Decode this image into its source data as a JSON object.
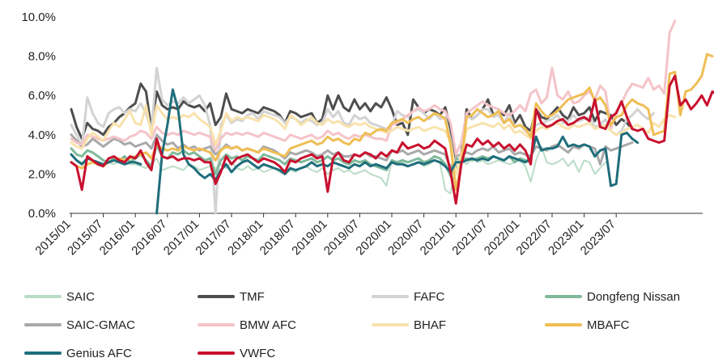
{
  "chart_data": {
    "type": "line",
    "title": "",
    "xlabel": "",
    "ylabel": "",
    "ylim": [
      0,
      10
    ],
    "y_ticks": [
      "0.0%",
      "2.0%",
      "4.0%",
      "6.0%",
      "8.0%",
      "10.0%"
    ],
    "x_ticks": [
      "2015/01",
      "2015/07",
      "2016/01",
      "2016/07",
      "2017/01",
      "2017/07",
      "2018/01",
      "2018/07",
      "2019/01",
      "2019/07",
      "2020/01",
      "2020/07",
      "2021/01",
      "2021/07",
      "2022/01",
      "2022/07",
      "2023/01",
      "2023/07"
    ],
    "x_start": "2015/01",
    "grid": false,
    "legend_placement": "bottom",
    "series": [
      {
        "name": "SAIC",
        "color": "#b9dcc6",
        "width": 2,
        "values": [
          3.0,
          2.7,
          2.6,
          2.5,
          2.6,
          2.5,
          2.4,
          2.6,
          2.5,
          2.7,
          2.6,
          2.5,
          2.5,
          2.4,
          2.3,
          2.5,
          2.8,
          2.2,
          2.3,
          2.4,
          2.3,
          2.2,
          2.5,
          2.4,
          2.2,
          2.3,
          2.4,
          2.3,
          2.5,
          2.3,
          2.6,
          2.3,
          2.2,
          2.4,
          2.2,
          2.3,
          2.1,
          2.2,
          2.3,
          2.1,
          2.0,
          2.2,
          2.1,
          2.3,
          2.4,
          2.2,
          2.1,
          2.3,
          2.0,
          2.2,
          2.3,
          2.1,
          2.2,
          2.0,
          2.1,
          2.2,
          2.0,
          1.9,
          1.8,
          1.4,
          2.7,
          2.5,
          2.6,
          2.4,
          2.5,
          2.6,
          2.4,
          2.5,
          2.7,
          2.6,
          1.2,
          1.0,
          2.6,
          2.7,
          2.5,
          2.8,
          2.6,
          2.7,
          2.5,
          2.6,
          2.7,
          2.6,
          2.5,
          2.6,
          2.7,
          2.4,
          1.6,
          2.7,
          3.4,
          2.6,
          2.5,
          2.6,
          2.8,
          2.4,
          2.7,
          2.1,
          2.7,
          2.6,
          2.0,
          2.3,
          2.6
        ]
      },
      {
        "name": "TMF",
        "color": "#4e4e4e",
        "width": 3,
        "values": [
          5.3,
          4.4,
          3.8,
          4.6,
          4.3,
          4.2,
          4.0,
          4.4,
          4.6,
          4.9,
          5.1,
          5.4,
          5.6,
          6.6,
          6.2,
          4.3,
          6.2,
          5.5,
          5.3,
          5.4,
          5.3,
          5.7,
          5.5,
          5.4,
          5.5,
          5.2,
          5.6,
          4.5,
          4.9,
          6.1,
          5.3,
          5.2,
          5.1,
          5.3,
          5.2,
          5.1,
          5.4,
          5.3,
          5.2,
          5.0,
          4.6,
          5.2,
          5.1,
          4.9,
          5.0,
          5.1,
          4.6,
          4.8,
          6.0,
          5.3,
          6.0,
          5.4,
          5.2,
          5.8,
          5.3,
          5.6,
          5.2,
          5.6,
          5.4,
          5.9,
          5.3,
          4.5,
          4.6,
          4.0,
          5.8,
          5.4,
          5.1,
          5.3,
          5.2,
          5.0,
          5.4,
          4.3,
          2.0,
          3.0,
          5.3,
          4.8,
          5.0,
          5.3,
          5.8,
          5.0,
          5.2,
          5.0,
          5.5,
          4.6,
          5.0,
          4.4,
          4.2,
          5.3,
          4.9,
          4.8,
          5.1,
          5.4,
          5.0,
          4.8,
          5.4,
          5.0,
          5.1,
          5.4,
          4.7,
          5.2,
          5.1,
          5.0,
          4.5,
          4.8,
          4.6,
          4.3
        ]
      },
      {
        "name": "FAFC",
        "color": "#d3d3d3",
        "width": 3,
        "values": [
          4.5,
          4.0,
          3.4,
          5.9,
          5.1,
          4.6,
          4.4,
          5.1,
          5.3,
          5.4,
          5.1,
          5.3,
          5.2,
          5.6,
          5.1,
          4.2,
          7.4,
          5.8,
          5.5,
          5.7,
          5.6,
          5.9,
          5.6,
          5.8,
          6.0,
          5.5,
          4.5,
          0.0,
          4.5,
          5.0,
          4.6,
          4.8,
          4.7,
          5.0,
          5.1,
          4.8,
          5.2,
          5.1,
          5.0,
          4.9,
          4.6,
          4.9,
          4.8,
          4.6,
          4.8,
          4.7,
          4.5,
          4.6,
          5.3,
          4.9,
          5.2,
          4.6,
          4.5,
          5.0,
          4.8,
          4.9,
          4.6,
          4.5,
          4.4,
          4.3,
          4.5,
          5.2,
          5.0,
          4.9,
          5.2,
          5.3,
          5.1,
          4.8,
          5.1,
          4.8,
          4.9,
          3.7,
          2.0,
          2.8,
          5.0,
          4.8,
          5.0,
          5.3,
          5.3,
          4.9,
          5.0,
          4.6,
          5.1,
          4.4,
          4.5,
          4.2,
          4.0,
          4.5,
          4.6,
          4.7,
          4.8,
          5.0,
          4.6,
          4.7,
          5.0,
          4.7,
          4.8,
          4.9,
          4.4,
          4.5,
          4.8,
          4.2,
          4.0,
          4.2,
          4.8,
          5.0,
          5.3,
          5.0,
          4.8,
          5.1
        ]
      },
      {
        "name": "Dongfeng Nissan",
        "color": "#7fb99a",
        "width": 3,
        "values": [
          3.3,
          3.0,
          2.9,
          3.2,
          3.1,
          2.9,
          2.7,
          2.6,
          2.8,
          2.7,
          2.9,
          2.6,
          2.8,
          3.0,
          2.7,
          2.4,
          3.5,
          2.9,
          2.8,
          3.1,
          3.0,
          3.2,
          3.0,
          3.1,
          2.9,
          2.7,
          2.8,
          2.0,
          2.7,
          3.0,
          2.8,
          2.9,
          2.7,
          2.9,
          2.8,
          2.7,
          3.0,
          2.9,
          2.8,
          2.7,
          2.5,
          2.8,
          2.7,
          2.6,
          2.7,
          2.8,
          2.6,
          2.7,
          2.9,
          2.7,
          2.8,
          2.6,
          2.5,
          2.7,
          2.6,
          2.7,
          2.5,
          2.4,
          2.3,
          2.2,
          2.7,
          2.6,
          2.7,
          2.6,
          2.7,
          2.8,
          2.6,
          2.7,
          2.9,
          2.8,
          2.5,
          1.9,
          2.8,
          2.7,
          2.8,
          2.7,
          2.8,
          2.9,
          2.8,
          2.9,
          2.8,
          2.7,
          2.9,
          2.6,
          2.8,
          2.7,
          2.6
        ]
      },
      {
        "name": "SAIC-GMAC",
        "color": "#a9a9a9",
        "width": 3,
        "values": [
          4.0,
          3.7,
          3.4,
          3.5,
          3.8,
          3.6,
          3.4,
          3.6,
          3.8,
          3.7,
          3.5,
          3.6,
          3.4,
          3.5,
          3.6,
          3.3,
          4.0,
          3.7,
          3.5,
          3.6,
          3.3,
          3.5,
          3.3,
          3.4,
          3.2,
          3.3,
          3.4,
          3.0,
          3.2,
          3.5,
          3.3,
          3.4,
          3.2,
          3.3,
          3.2,
          3.1,
          3.4,
          3.3,
          3.2,
          3.0,
          2.8,
          3.1,
          3.0,
          3.1,
          3.2,
          3.1,
          2.9,
          3.0,
          3.2,
          3.0,
          3.1,
          2.9,
          2.9,
          3.0,
          2.9,
          3.1,
          2.9,
          2.9,
          2.8,
          2.7,
          3.2,
          3.1,
          3.2,
          3.0,
          3.1,
          3.2,
          3.0,
          3.1,
          3.2,
          3.1,
          3.0,
          2.3,
          2.9,
          3.0,
          3.1,
          3.0,
          3.2,
          3.3,
          3.2,
          3.4,
          3.1,
          3.2,
          3.3,
          3.0,
          3.1,
          3.0,
          2.9,
          3.4,
          3.3,
          3.2,
          3.4,
          3.5,
          3.3,
          3.1,
          3.4,
          3.3,
          3.5,
          3.4,
          3.3,
          2.5,
          3.4,
          3.2,
          3.3,
          3.4,
          3.5,
          3.6
        ]
      },
      {
        "name": "BMW AFC",
        "color": "#f4c4c8",
        "width": 3,
        "values": [
          3.8,
          3.6,
          3.5,
          4.0,
          3.9,
          3.8,
          3.7,
          3.8,
          3.9,
          3.8,
          3.7,
          3.9,
          4.0,
          4.2,
          4.1,
          3.8,
          4.4,
          4.1,
          4.0,
          4.1,
          4.0,
          4.2,
          4.1,
          4.0,
          4.1,
          4.0,
          3.9,
          3.2,
          3.8,
          4.1,
          4.0,
          4.1,
          4.0,
          4.1,
          4.0,
          3.9,
          4.1,
          4.0,
          3.9,
          3.8,
          3.7,
          4.0,
          3.9,
          3.8,
          3.9,
          4.0,
          3.8,
          3.9,
          4.2,
          4.0,
          4.1,
          3.9,
          3.8,
          4.0,
          3.9,
          4.0,
          3.9,
          3.8,
          3.8,
          3.7,
          4.5,
          4.6,
          4.8,
          5.0,
          5.2,
          5.4,
          5.2,
          5.3,
          5.5,
          5.3,
          5.2,
          4.6,
          3.0,
          3.6,
          5.1,
          5.3,
          5.5,
          5.7,
          5.5,
          5.4,
          5.3,
          5.1,
          5.0,
          5.2,
          5.5,
          5.2,
          6.1,
          6.3,
          5.6,
          5.9,
          7.4,
          6.0,
          5.8,
          6.2,
          5.6,
          5.7,
          6.0,
          6.2,
          5.8,
          6.5,
          6.2,
          4.3,
          5.2,
          5.6,
          6.2,
          6.6,
          6.5,
          6.4,
          6.9,
          6.3,
          6.5,
          6.1,
          9.2,
          9.8
        ]
      },
      {
        "name": "BHAF",
        "color": "#f9e2ad",
        "width": 3,
        "values": [
          3.6,
          3.4,
          3.3,
          3.8,
          4.1,
          3.9,
          3.7,
          4.2,
          4.6,
          4.4,
          4.8,
          5.2,
          4.6,
          4.5,
          5.5,
          4.0,
          5.5,
          5.1,
          4.8,
          4.9,
          4.8,
          5.0,
          4.9,
          5.1,
          4.8,
          4.6,
          4.4,
          3.5,
          4.2,
          5.1,
          4.7,
          4.9,
          4.8,
          4.9,
          4.8,
          4.7,
          5.0,
          4.9,
          4.8,
          4.6,
          4.3,
          5.0,
          4.8,
          4.5,
          4.7,
          4.9,
          4.6,
          4.5,
          4.8,
          4.6,
          4.7,
          4.5,
          4.4,
          4.6,
          4.5,
          4.6,
          4.4,
          4.3,
          4.2,
          4.1,
          4.2,
          4.4,
          4.3,
          4.2,
          4.3,
          4.4,
          4.2,
          4.3,
          4.4,
          4.3,
          4.2,
          3.6,
          2.0,
          3.0,
          4.3,
          4.4,
          4.5,
          4.6,
          4.5,
          4.4,
          4.6,
          4.3,
          4.5,
          4.1,
          4.2,
          4.0,
          3.8,
          4.2,
          4.4,
          4.3,
          4.5,
          4.6,
          4.4,
          4.3,
          4.5,
          4.4,
          4.5,
          4.6,
          4.3,
          4.4,
          4.5,
          4.2,
          4.0,
          4.1,
          4.3,
          4.4,
          4.5,
          4.3,
          4.1,
          4.6,
          4.4,
          4.8,
          5.0,
          4.9
        ]
      },
      {
        "name": "MBAFC",
        "color": "#efbe55",
        "width": 3,
        "values": [
          2.6,
          2.4,
          2.3,
          2.5,
          2.6,
          2.5,
          2.4,
          2.6,
          2.7,
          2.8,
          2.7,
          2.8,
          2.9,
          3.0,
          3.1,
          2.8,
          3.5,
          3.3,
          3.2,
          3.3,
          3.2,
          3.4,
          3.3,
          3.2,
          3.3,
          3.2,
          3.1,
          2.7,
          3.2,
          3.4,
          3.3,
          3.4,
          3.2,
          3.3,
          3.2,
          3.1,
          3.3,
          3.2,
          3.1,
          3.0,
          2.9,
          3.3,
          3.4,
          3.5,
          3.6,
          3.7,
          3.5,
          3.6,
          3.9,
          3.7,
          3.8,
          3.6,
          3.5,
          3.8,
          3.7,
          4.1,
          4.0,
          4.2,
          4.3,
          4.2,
          4.6,
          4.7,
          4.8,
          4.6,
          4.8,
          4.9,
          4.7,
          4.9,
          5.1,
          5.0,
          4.8,
          3.5,
          1.2,
          2.5,
          4.9,
          5.0,
          5.3,
          5.1,
          4.9,
          5.0,
          5.2,
          4.6,
          4.8,
          4.4,
          4.5,
          4.3,
          3.9,
          5.6,
          5.2,
          4.9,
          5.0,
          5.2,
          5.5,
          5.8,
          5.9,
          6.0,
          6.1,
          6.4,
          5.7,
          5.9,
          5.5,
          4.5,
          4.9,
          5.0,
          5.5,
          5.8,
          5.6,
          5.5,
          5.3,
          4.0,
          4.1,
          4.2,
          7.1,
          7.2,
          5.0,
          6.2,
          6.3,
          6.6,
          7.0,
          8.1,
          8.0
        ]
      },
      {
        "name": "Genius AFC",
        "color": "#1f6e7c",
        "width": 3,
        "values": [
          3.0,
          2.7,
          2.5,
          2.8,
          2.7,
          2.6,
          2.5,
          2.6,
          2.7,
          2.6,
          2.5,
          2.6,
          2.6,
          2.5,
          2.4,
          1.5,
          0.0,
          3.0,
          4.5,
          6.3,
          5.3,
          3.0,
          2.5,
          2.3,
          2.0,
          1.8,
          2.0,
          1.7,
          2.2,
          2.5,
          2.1,
          2.4,
          2.6,
          2.7,
          2.5,
          2.3,
          2.5,
          2.4,
          2.3,
          2.2,
          2.0,
          2.3,
          2.2,
          2.3,
          2.4,
          2.6,
          2.4,
          2.5,
          2.4,
          2.6,
          2.5,
          2.4,
          2.3,
          2.5,
          2.4,
          2.6,
          2.4,
          2.5,
          2.4,
          2.3,
          2.6,
          2.5,
          2.5,
          2.4,
          2.5,
          2.6,
          2.5,
          2.6,
          2.7,
          2.6,
          2.4,
          2.1,
          2.6,
          2.6,
          2.7,
          2.8,
          2.7,
          2.8,
          2.7,
          2.9,
          2.8,
          2.7,
          2.9,
          2.8,
          2.7,
          2.6,
          2.8,
          3.9,
          3.2,
          3.3,
          3.3,
          3.4,
          3.9,
          3.4,
          3.5,
          3.4,
          3.5,
          3.4,
          2.9,
          3.2,
          3.3,
          1.4,
          1.5,
          4.0,
          4.1,
          3.8,
          3.6
        ],
        "gaps": [
          [
            13,
            16
          ]
        ]
      },
      {
        "name": "VWFC",
        "color": "#c8102e",
        "width": 3,
        "values": [
          2.6,
          2.4,
          1.2,
          2.9,
          2.7,
          2.5,
          2.4,
          2.8,
          2.9,
          2.7,
          2.6,
          2.9,
          2.8,
          3.2,
          2.6,
          2.2,
          3.8,
          2.9,
          2.8,
          2.9,
          2.7,
          2.8,
          2.8,
          2.7,
          2.8,
          2.6,
          2.6,
          1.5,
          2.1,
          2.9,
          2.5,
          2.8,
          2.9,
          3.0,
          2.8,
          2.6,
          2.8,
          2.7,
          2.6,
          2.4,
          2.1,
          2.7,
          2.6,
          2.8,
          2.9,
          3.0,
          2.8,
          2.9,
          1.1,
          2.8,
          3.1,
          2.7,
          2.6,
          3.0,
          2.9,
          3.1,
          3.0,
          2.8,
          3.1,
          2.9,
          3.2,
          3.1,
          3.6,
          3.3,
          3.4,
          3.5,
          3.3,
          3.4,
          3.7,
          3.5,
          3.3,
          2.1,
          0.5,
          2.5,
          3.5,
          3.4,
          3.8,
          3.5,
          3.7,
          3.4,
          3.6,
          3.3,
          3.5,
          3.2,
          3.5,
          3.2,
          2.5,
          5.3,
          4.6,
          4.4,
          4.5,
          4.7,
          4.8,
          4.5,
          4.6,
          4.8,
          4.9,
          4.7,
          5.8,
          4.4,
          4.3,
          4.9,
          5.1,
          5.7,
          4.9,
          4.3,
          4.2,
          4.3,
          3.8,
          3.7,
          3.6,
          3.7,
          6.5,
          7.0,
          5.5,
          5.8,
          5.3,
          5.6,
          6.0,
          5.5,
          6.2,
          6.0
        ]
      }
    ]
  }
}
